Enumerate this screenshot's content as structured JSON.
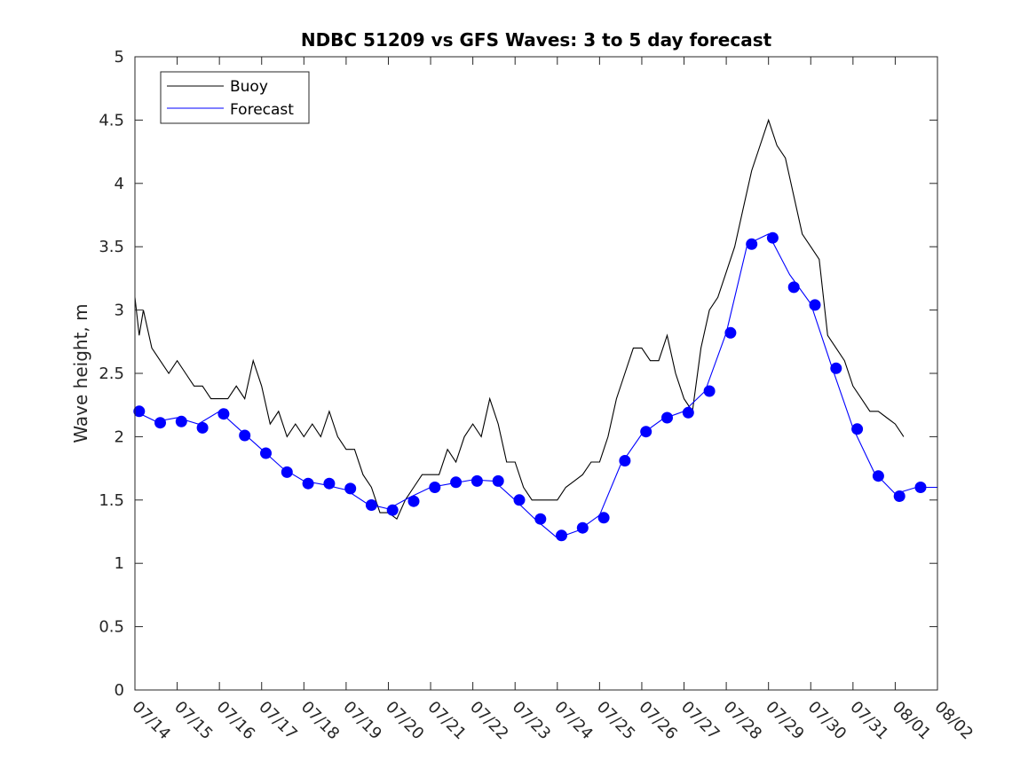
{
  "chart_data": {
    "type": "line",
    "title": "NDBC 51209 vs GFS Waves: 3 to 5 day forecast",
    "xlabel": "",
    "ylabel": "Wave height, m",
    "ylim": [
      0,
      5
    ],
    "xlim": [
      "07/14",
      "08/02"
    ],
    "grid": false,
    "legend_position": "top-left",
    "yticks": [
      "0",
      "0.5",
      "1",
      "1.5",
      "2",
      "2.5",
      "3",
      "3.5",
      "4",
      "4.5",
      "5"
    ],
    "xticks": [
      "07/14",
      "07/15",
      "07/16",
      "07/17",
      "07/18",
      "07/19",
      "07/20",
      "07/21",
      "07/22",
      "07/23",
      "07/24",
      "07/25",
      "07/26",
      "07/27",
      "07/28",
      "07/29",
      "07/30",
      "07/31",
      "08/01",
      "08/02"
    ],
    "colors": {
      "buoy": "#000000",
      "forecast": "#0000ff"
    },
    "legend": [
      {
        "label": "Buoy",
        "color": "#000000"
      },
      {
        "label": "Forecast",
        "color": "#0000ff"
      }
    ],
    "series": [
      {
        "name": "Buoy",
        "type": "line",
        "x_unit": "days after 07/14",
        "x": [
          0,
          0.1,
          0.2,
          0.4,
          0.6,
          0.8,
          1.0,
          1.2,
          1.4,
          1.6,
          1.8,
          2.0,
          2.2,
          2.4,
          2.6,
          2.8,
          3.0,
          3.2,
          3.4,
          3.6,
          3.8,
          4.0,
          4.2,
          4.4,
          4.6,
          4.8,
          5.0,
          5.2,
          5.4,
          5.6,
          5.8,
          6.0,
          6.2,
          6.4,
          6.6,
          6.8,
          7.0,
          7.2,
          7.4,
          7.6,
          7.8,
          8.0,
          8.2,
          8.4,
          8.6,
          8.8,
          9.0,
          9.2,
          9.4,
          9.6,
          9.8,
          10.0,
          10.2,
          10.4,
          10.6,
          10.8,
          11.0,
          11.2,
          11.4,
          11.6,
          11.8,
          12.0,
          12.2,
          12.4,
          12.6,
          12.8,
          13.0,
          13.2,
          13.4,
          13.6,
          13.8,
          14.0,
          14.2,
          14.4,
          14.6,
          14.8,
          15.0,
          15.2,
          15.4,
          15.6,
          15.8,
          16.0,
          16.2,
          16.4,
          16.6,
          16.8,
          17.0,
          17.2,
          17.4,
          17.6,
          17.8,
          18.0,
          18.2
        ],
        "y": [
          3.1,
          2.8,
          3.0,
          2.7,
          2.6,
          2.5,
          2.6,
          2.5,
          2.4,
          2.4,
          2.3,
          2.3,
          2.3,
          2.4,
          2.3,
          2.6,
          2.4,
          2.1,
          2.2,
          2.0,
          2.1,
          2.0,
          2.1,
          2.0,
          2.2,
          2.0,
          1.9,
          1.9,
          1.7,
          1.6,
          1.4,
          1.4,
          1.35,
          1.5,
          1.6,
          1.7,
          1.7,
          1.7,
          1.9,
          1.8,
          2.0,
          2.1,
          2.0,
          2.3,
          2.1,
          1.8,
          1.8,
          1.6,
          1.5,
          1.5,
          1.5,
          1.5,
          1.6,
          1.65,
          1.7,
          1.8,
          1.8,
          2.0,
          2.3,
          2.5,
          2.7,
          2.7,
          2.6,
          2.6,
          2.8,
          2.5,
          2.3,
          2.2,
          2.7,
          3.0,
          3.1,
          3.3,
          3.5,
          3.8,
          4.1,
          4.3,
          4.5,
          4.3,
          4.2,
          3.9,
          3.6,
          3.5,
          3.4,
          2.8,
          2.7,
          2.6,
          2.4,
          2.3,
          2.2,
          2.2,
          2.15,
          2.1,
          2.0
        ]
      },
      {
        "name": "Forecast",
        "type": "line",
        "x_unit": "days after 07/14",
        "x": [
          0,
          0.5,
          1.0,
          1.5,
          2.0,
          2.5,
          3.0,
          3.5,
          4.0,
          4.5,
          5.0,
          5.5,
          6.0,
          6.5,
          7.0,
          7.5,
          8.0,
          8.5,
          9.0,
          9.5,
          10.0,
          10.5,
          11.0,
          11.5,
          12.0,
          12.5,
          13.0,
          13.5,
          14.0,
          14.5,
          15.0,
          15.5,
          16.0,
          16.5,
          17.0,
          17.5,
          18.0,
          18.5,
          19.0
        ],
        "y": [
          2.2,
          2.12,
          2.15,
          2.1,
          2.2,
          2.05,
          1.9,
          1.75,
          1.65,
          1.62,
          1.58,
          1.47,
          1.43,
          1.52,
          1.6,
          1.63,
          1.66,
          1.65,
          1.5,
          1.34,
          1.2,
          1.26,
          1.38,
          1.78,
          2.02,
          2.14,
          2.2,
          2.36,
          2.82,
          3.52,
          3.6,
          3.28,
          3.05,
          2.55,
          2.07,
          1.72,
          1.55,
          1.6,
          1.6
        ]
      },
      {
        "name": "Forecast points",
        "type": "scatter",
        "x_unit": "days after 07/14",
        "x": [
          0.1,
          0.6,
          1.1,
          1.6,
          2.1,
          2.6,
          3.1,
          3.6,
          4.1,
          4.6,
          5.1,
          5.6,
          6.1,
          6.6,
          7.1,
          7.6,
          8.1,
          8.6,
          9.1,
          9.6,
          10.1,
          10.6,
          11.1,
          11.6,
          12.1,
          12.6,
          13.1,
          13.6,
          14.1,
          14.6,
          15.1,
          15.6,
          16.1,
          16.6,
          17.1,
          17.6,
          18.1,
          18.6
        ],
        "y": [
          2.2,
          2.11,
          2.12,
          2.07,
          2.18,
          2.01,
          1.87,
          1.72,
          1.63,
          1.63,
          1.59,
          1.46,
          1.42,
          1.49,
          1.6,
          1.64,
          1.65,
          1.65,
          1.5,
          1.35,
          1.22,
          1.28,
          1.36,
          1.81,
          2.04,
          2.15,
          2.19,
          2.36,
          2.82,
          3.52,
          3.57,
          3.18,
          3.04,
          2.54,
          2.06,
          1.69,
          1.53,
          1.6
        ]
      }
    ]
  }
}
